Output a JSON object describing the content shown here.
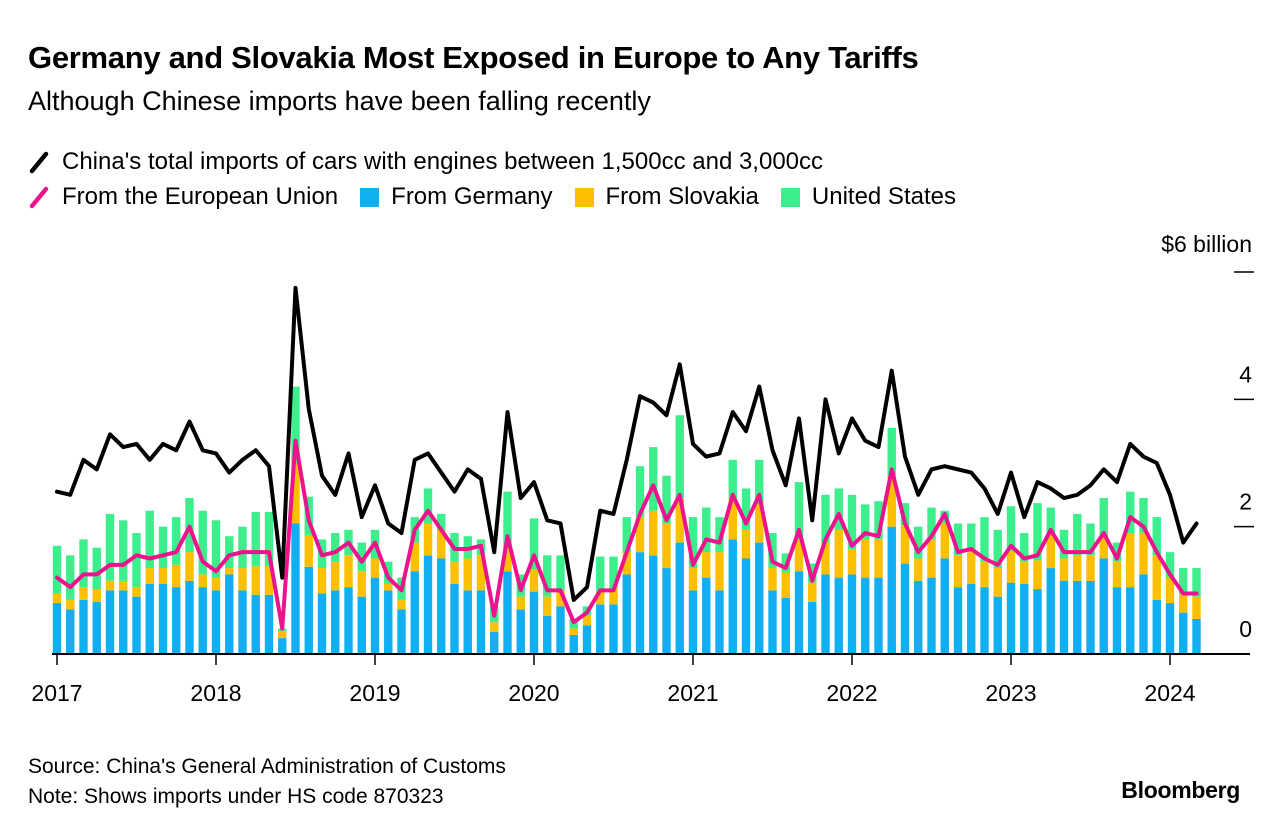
{
  "title": "Germany and Slovakia Most Exposed in Europe to Any Tariffs",
  "subtitle": "Although Chinese imports have been falling recently",
  "source": "Source: China's General Administration of Customs",
  "note": "Note: Shows imports under HS code 870323",
  "brand": "Bloomberg",
  "colors": {
    "total": "#000000",
    "eu": "#ed138c",
    "germany": "#12aef2",
    "slovakia": "#fcc000",
    "united_states": "#3cef8c",
    "axis": "#000000"
  },
  "chart_data": {
    "type": "bar",
    "x_start": "2017-01",
    "x_tick_labels": [
      "2017",
      "2018",
      "2019",
      "2020",
      "2021",
      "2022",
      "2023",
      "2024"
    ],
    "y_unit_label": "$6 billion",
    "y_tick_labels": [
      "0",
      "2",
      "4"
    ],
    "ylim": [
      0,
      6
    ],
    "y_ticks": [
      0,
      2,
      4,
      6
    ],
    "legend": {
      "total": "China's total imports of cars with engines between 1,500cc and 3,000cc",
      "eu": "From the European Union",
      "germany": "From Germany",
      "slovakia": "From Slovakia",
      "united_states": "United States"
    },
    "series": [
      {
        "name": "China's total imports of cars with engines between 1,500cc and 3,000cc",
        "type": "line",
        "values": [
          2.55,
          2.5,
          3.05,
          2.9,
          3.45,
          3.25,
          3.3,
          3.05,
          3.3,
          3.2,
          3.65,
          3.2,
          3.15,
          2.85,
          3.05,
          3.2,
          2.95,
          1.2,
          5.75,
          3.85,
          2.8,
          2.5,
          3.15,
          2.15,
          2.65,
          2.05,
          1.9,
          3.05,
          3.15,
          2.85,
          2.55,
          2.9,
          2.75,
          1.6,
          3.8,
          2.45,
          2.7,
          2.1,
          2.05,
          0.85,
          1.05,
          2.25,
          2.2,
          3.05,
          4.05,
          3.95,
          3.75,
          4.55,
          3.3,
          3.1,
          3.15,
          3.8,
          3.5,
          4.2,
          3.2,
          2.65,
          3.7,
          2.1,
          4.0,
          3.15,
          3.7,
          3.35,
          3.25,
          4.45,
          3.1,
          2.5,
          2.9,
          2.95,
          2.9,
          2.85,
          2.6,
          2.2,
          2.85,
          2.15,
          2.7,
          2.6,
          2.45,
          2.5,
          2.65,
          2.9,
          2.7,
          3.3,
          3.1,
          3.0,
          2.5,
          1.75,
          2.05
        ]
      },
      {
        "name": "From the European Union",
        "type": "line",
        "values": [
          1.2,
          1.05,
          1.25,
          1.25,
          1.4,
          1.4,
          1.55,
          1.5,
          1.55,
          1.6,
          2.0,
          1.45,
          1.3,
          1.55,
          1.6,
          1.6,
          1.6,
          0.4,
          3.35,
          2.1,
          1.55,
          1.6,
          1.75,
          1.45,
          1.75,
          1.2,
          1.0,
          1.95,
          2.25,
          1.95,
          1.65,
          1.65,
          1.7,
          0.6,
          1.85,
          1.0,
          1.55,
          1.0,
          1.0,
          0.5,
          0.65,
          1.0,
          1.0,
          1.6,
          2.2,
          2.65,
          2.1,
          2.5,
          1.4,
          1.8,
          1.75,
          2.5,
          2.05,
          2.5,
          1.45,
          1.35,
          1.95,
          1.15,
          1.8,
          2.2,
          1.7,
          1.9,
          1.85,
          2.9,
          2.05,
          1.6,
          1.85,
          2.2,
          1.6,
          1.65,
          1.5,
          1.4,
          1.7,
          1.5,
          1.55,
          1.95,
          1.6,
          1.6,
          1.6,
          1.9,
          1.5,
          2.15,
          2.0,
          1.6,
          1.25,
          0.95,
          0.95
        ]
      },
      {
        "name": "From Germany",
        "type": "bar",
        "values": [
          0.8,
          0.7,
          0.85,
          0.82,
          1.0,
          1.0,
          0.9,
          1.1,
          1.1,
          1.05,
          1.15,
          1.05,
          1.0,
          1.25,
          1.0,
          0.93,
          0.93,
          0.25,
          2.05,
          1.37,
          0.95,
          1.0,
          1.05,
          0.9,
          1.2,
          1.0,
          0.7,
          1.3,
          1.55,
          1.5,
          1.1,
          1.0,
          1.0,
          0.35,
          1.3,
          0.7,
          0.98,
          0.6,
          0.75,
          0.3,
          0.45,
          0.78,
          0.78,
          1.25,
          1.6,
          1.55,
          1.35,
          1.75,
          1.0,
          1.2,
          1.0,
          1.8,
          1.5,
          1.75,
          1.0,
          0.88,
          1.3,
          0.82,
          1.25,
          1.2,
          1.25,
          1.2,
          1.2,
          2.0,
          1.42,
          1.15,
          1.2,
          1.5,
          1.05,
          1.1,
          1.05,
          0.9,
          1.12,
          1.1,
          1.02,
          1.35,
          1.15,
          1.15,
          1.15,
          1.5,
          1.05,
          1.05,
          1.25,
          0.85,
          0.8,
          0.65,
          0.55
        ]
      },
      {
        "name": "From Slovakia",
        "type": "bar",
        "values": [
          0.15,
          0.15,
          0.2,
          0.2,
          0.15,
          0.15,
          0.15,
          0.25,
          0.25,
          0.35,
          0.45,
          0.2,
          0.2,
          0.1,
          0.35,
          0.45,
          0.45,
          0.1,
          0.95,
          0.5,
          0.4,
          0.45,
          0.5,
          0.4,
          0.3,
          0.1,
          0.15,
          0.45,
          0.5,
          0.45,
          0.35,
          0.5,
          0.55,
          0.15,
          0.35,
          0.2,
          0.35,
          0.3,
          0.25,
          0.1,
          0.15,
          0.2,
          0.25,
          0.35,
          0.55,
          0.7,
          0.7,
          0.7,
          0.35,
          0.4,
          0.6,
          0.65,
          0.45,
          0.6,
          0.35,
          0.4,
          0.5,
          0.3,
          0.5,
          0.75,
          0.4,
          0.6,
          0.6,
          0.8,
          0.6,
          0.35,
          0.6,
          0.55,
          0.5,
          0.5,
          0.4,
          0.45,
          0.5,
          0.35,
          0.45,
          0.55,
          0.35,
          0.4,
          0.4,
          0.35,
          0.4,
          0.85,
          0.65,
          0.7,
          0.4,
          0.3,
          0.35
        ]
      },
      {
        "name": "United States",
        "type": "bar",
        "values": [
          0.75,
          0.7,
          0.75,
          0.65,
          1.05,
          0.95,
          0.85,
          0.9,
          0.65,
          0.75,
          0.85,
          1.0,
          0.9,
          0.5,
          0.65,
          0.85,
          0.85,
          0.05,
          1.2,
          0.6,
          0.45,
          0.45,
          0.4,
          0.45,
          0.45,
          0.35,
          0.35,
          0.4,
          0.55,
          0.25,
          0.45,
          0.35,
          0.25,
          0.25,
          0.9,
          0.35,
          0.8,
          0.65,
          0.55,
          0.15,
          0.15,
          0.55,
          0.5,
          0.55,
          0.8,
          1.0,
          0.75,
          1.3,
          0.8,
          0.7,
          0.55,
          0.6,
          0.65,
          0.7,
          0.55,
          0.3,
          0.9,
          0.3,
          0.75,
          0.65,
          0.85,
          0.55,
          0.6,
          0.75,
          0.35,
          0.5,
          0.5,
          0.2,
          0.5,
          0.45,
          0.7,
          0.6,
          0.7,
          0.45,
          0.9,
          0.4,
          0.45,
          0.65,
          0.5,
          0.6,
          0.3,
          0.65,
          0.55,
          0.6,
          0.4,
          0.4,
          0.45
        ]
      }
    ]
  }
}
